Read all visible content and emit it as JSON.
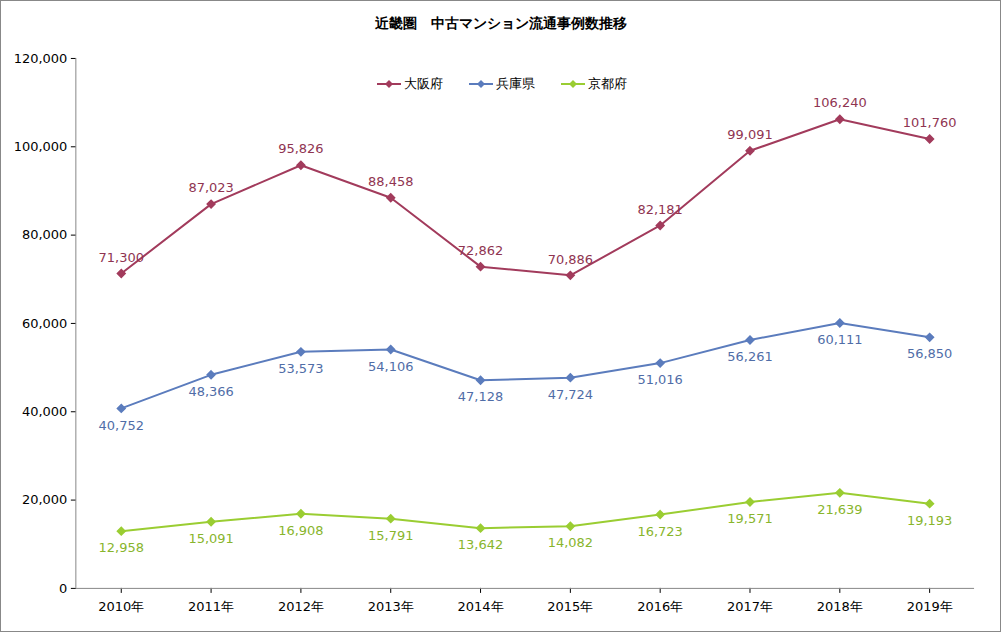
{
  "chart_data": {
    "type": "line",
    "title": "近畿圏　中古マンション流通事例数推移",
    "categories": [
      "2010年",
      "2011年",
      "2012年",
      "2013年",
      "2014年",
      "2015年",
      "2016年",
      "2017年",
      "2018年",
      "2019年"
    ],
    "series": [
      {
        "name": "大阪府",
        "color": "#a23b5c",
        "marker": "diamond",
        "values": [
          71300,
          87023,
          95826,
          88458,
          72862,
          70886,
          82181,
          99091,
          106240,
          101760
        ],
        "value_labels": [
          "71,300",
          "87,023",
          "95,826",
          "88,458",
          "72,862",
          "70,886",
          "82,181",
          "99,091",
          "106,240",
          "101,760"
        ]
      },
      {
        "name": "兵庫県",
        "color": "#5b7cbd",
        "marker": "diamond",
        "values": [
          40752,
          48366,
          53573,
          54106,
          47128,
          47724,
          51016,
          56261,
          60111,
          56850
        ],
        "value_labels": [
          "40,752",
          "48,366",
          "53,573",
          "54,106",
          "47,128",
          "47,724",
          "51,016",
          "56,261",
          "60,111",
          "56,850"
        ]
      },
      {
        "name": "京都府",
        "color": "#9acd32",
        "marker": "diamond",
        "values": [
          12958,
          15091,
          16908,
          15791,
          13642,
          14082,
          16723,
          19571,
          21639,
          19193
        ],
        "value_labels": [
          "12,958",
          "15,091",
          "16,908",
          "15,791",
          "13,642",
          "14,082",
          "16,723",
          "19,571",
          "21,639",
          "19,193"
        ]
      }
    ],
    "ylim": [
      0,
      120000
    ],
    "yticks": [
      0,
      {
        "value": 20000,
        "label": "20,000"
      },
      {
        "value": 40000,
        "label": "40,000"
      },
      {
        "value": 60000,
        "label": "60,000"
      },
      {
        "value": 80000,
        "label": "80,000"
      },
      {
        "value": 100000,
        "label": "100,000"
      },
      {
        "value": 120000,
        "label": "120,000"
      }
    ],
    "grid": false,
    "legend": "top",
    "data_labels": true
  }
}
